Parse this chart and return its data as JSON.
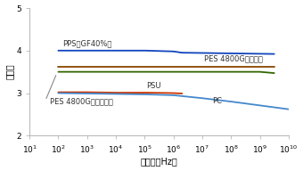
{
  "title_ylabel": "誘電率",
  "xlabel": "周波数（Hz）",
  "ymin": 2,
  "ymax": 5,
  "yticks": [
    2,
    3,
    4,
    5
  ],
  "xtick_powers": [
    1,
    2,
    3,
    4,
    5,
    6,
    7,
    8,
    9,
    10
  ],
  "lines": [
    {
      "label": "PPS(GF40%)",
      "color": "#1144bb",
      "x_pow": [
        2,
        3,
        4,
        5,
        6,
        6.3,
        9.5
      ],
      "y": [
        4.0,
        4.0,
        4.0,
        4.0,
        3.98,
        3.95,
        3.92
      ],
      "lw": 1.3
    },
    {
      "label": "PES 4800G(乾燥)",
      "color": "#884400",
      "x_pow": [
        2,
        3,
        4,
        5,
        6,
        7,
        8,
        9,
        9.5
      ],
      "y": [
        3.62,
        3.62,
        3.62,
        3.62,
        3.62,
        3.62,
        3.62,
        3.62,
        3.62
      ],
      "lw": 1.3
    },
    {
      "label": "PES 4800G(未乾燥)",
      "color": "#336600",
      "x_pow": [
        2,
        3,
        4,
        5,
        6,
        7,
        8,
        9,
        9.5
      ],
      "y": [
        3.5,
        3.5,
        3.5,
        3.5,
        3.5,
        3.5,
        3.5,
        3.5,
        3.47
      ],
      "lw": 1.3
    },
    {
      "label": "PSU",
      "color": "#cc3300",
      "x_pow": [
        2,
        3,
        4,
        5,
        6,
        6.3
      ],
      "y": [
        3.02,
        3.02,
        3.01,
        3.01,
        3.0,
        2.99
      ],
      "lw": 1.3
    },
    {
      "label": "PC",
      "color": "#4488cc",
      "x_pow": [
        2,
        3,
        4,
        5,
        6,
        7,
        8,
        9,
        10
      ],
      "y": [
        3.0,
        2.99,
        2.98,
        2.97,
        2.95,
        2.88,
        2.8,
        2.71,
        2.62
      ],
      "lw": 1.3
    }
  ],
  "annotations": [
    {
      "text": "PPS（GF40%）",
      "x_pow": 2.15,
      "y": 4.07,
      "fontsize": 6.0,
      "color": "#333333",
      "ha": "left"
    },
    {
      "text": "PES 4800G（乾燥）",
      "x_pow": 7.05,
      "y": 3.72,
      "fontsize": 6.0,
      "color": "#333333",
      "ha": "left"
    },
    {
      "text": "PSU",
      "x_pow": 5.05,
      "y": 3.07,
      "fontsize": 6.0,
      "color": "#333333",
      "ha": "left"
    },
    {
      "text": "PC",
      "x_pow": 7.35,
      "y": 2.71,
      "fontsize": 6.0,
      "color": "#333333",
      "ha": "left"
    },
    {
      "text": "PES 4800G（未乾燥）",
      "x_pow": 1.72,
      "y": 2.72,
      "fontsize": 6.0,
      "color": "#333333",
      "ha": "left"
    }
  ],
  "annot_line": {
    "x1_pow": 1.55,
    "y1": 2.82,
    "x2_pow": 1.95,
    "y2": 3.47,
    "color": "#888888",
    "lw": 0.8
  },
  "bg_color": "#ffffff",
  "tick_fontsize": 6.5,
  "label_fontsize": 7.0
}
